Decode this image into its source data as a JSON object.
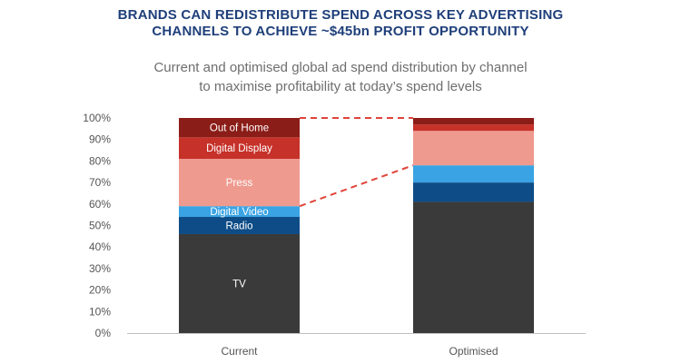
{
  "headline": {
    "line1": "BRANDS CAN REDISTRIBUTE SPEND ACROSS KEY ADVERTISING",
    "line2": "CHANNELS TO ACHIEVE ~$45bn PROFIT OPPORTUNITY"
  },
  "chart_data": {
    "type": "bar",
    "stacked": true,
    "title": "Current and optimised global ad spend distribution by channel",
    "subtitle": "to maximise profitability at today’s spend levels",
    "xlabel": "",
    "ylabel": "",
    "ylim": [
      0,
      100
    ],
    "y_ticks": [
      "0%",
      "10%",
      "20%",
      "30%",
      "40%",
      "50%",
      "60%",
      "70%",
      "80%",
      "90%",
      "100%"
    ],
    "categories": [
      "Current",
      "Optimised"
    ],
    "series": [
      {
        "name": "TV",
        "values": [
          46,
          61
        ],
        "color": "#3a3a3a"
      },
      {
        "name": "Radio",
        "values": [
          8,
          9
        ],
        "color": "#0e4c87"
      },
      {
        "name": "Digital Video",
        "values": [
          5,
          8
        ],
        "color": "#3aa3e3"
      },
      {
        "name": "Press",
        "values": [
          22,
          16
        ],
        "color": "#ef9a8f"
      },
      {
        "name": "Digital Display",
        "values": [
          10,
          3
        ],
        "color": "#c63129"
      },
      {
        "name": "Out of Home",
        "values": [
          9,
          3
        ],
        "color": "#8b1d18"
      }
    ],
    "connector_color": "#e0443a",
    "grid": false,
    "legend": "none"
  }
}
